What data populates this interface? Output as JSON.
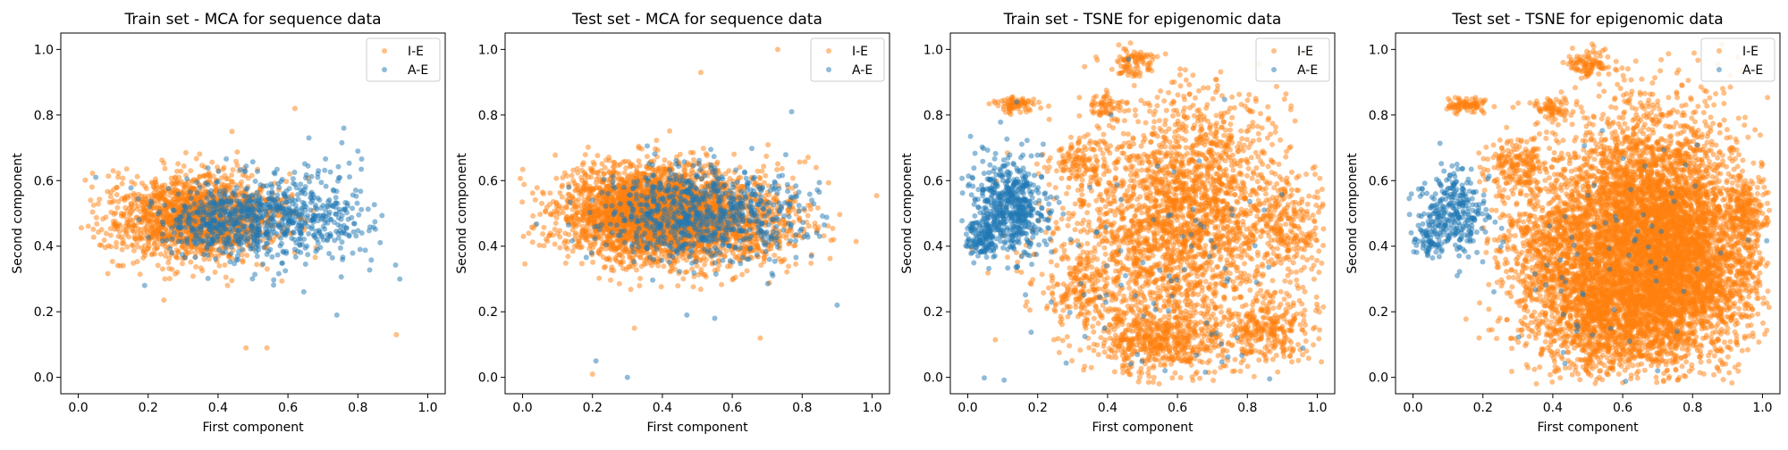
{
  "colors": {
    "I-E": "#ff7f0e",
    "A-E": "#1f77b4"
  },
  "chart_data": [
    {
      "type": "scatter",
      "title": "Train set - MCA for sequence data",
      "xlabel": "First component",
      "ylabel": "Second component",
      "xlim": [
        -0.05,
        1.05
      ],
      "ylim": [
        -0.05,
        1.05
      ],
      "xticks": [
        "0.0",
        "0.2",
        "0.4",
        "0.6",
        "0.8",
        "1.0"
      ],
      "yticks": [
        "0.0",
        "0.2",
        "0.4",
        "0.6",
        "0.8",
        "1.0"
      ],
      "grid": false,
      "legend_position": "top-right",
      "series": [
        {
          "name": "I-E",
          "color": "#ff7f0e",
          "alpha": 0.5,
          "clusters": [
            {
              "cx": 0.36,
              "cy": 0.49,
              "sx": 0.11,
              "sy": 0.065,
              "n": 1400
            },
            {
              "cx": 0.2,
              "cy": 0.48,
              "sx": 0.08,
              "sy": 0.07,
              "n": 250
            }
          ],
          "outliers": [
            [
              0.62,
              0.82
            ],
            [
              0.91,
              0.13
            ],
            [
              0.48,
              0.09
            ],
            [
              0.54,
              0.09
            ],
            [
              0.44,
              0.75
            ],
            [
              0.1,
              0.63
            ],
            [
              0.12,
              0.34
            ]
          ]
        },
        {
          "name": "A-E",
          "color": "#1f77b4",
          "alpha": 0.5,
          "clusters": [
            {
              "cx": 0.48,
              "cy": 0.48,
              "sx": 0.12,
              "sy": 0.06,
              "n": 700
            },
            {
              "cx": 0.72,
              "cy": 0.5,
              "sx": 0.07,
              "sy": 0.07,
              "n": 150
            }
          ],
          "outliers": [
            [
              0.92,
              0.3
            ],
            [
              0.74,
              0.19
            ],
            [
              0.76,
              0.76
            ],
            [
              0.8,
              0.69
            ],
            [
              0.66,
              0.73
            ],
            [
              0.19,
              0.28
            ],
            [
              0.05,
              0.61
            ]
          ]
        }
      ]
    },
    {
      "type": "scatter",
      "title": "Test set - MCA for sequence data",
      "xlabel": "First component",
      "ylabel": "Second component",
      "xlim": [
        -0.05,
        1.05
      ],
      "ylim": [
        -0.05,
        1.05
      ],
      "xticks": [
        "0.0",
        "0.2",
        "0.4",
        "0.6",
        "0.8",
        "1.0"
      ],
      "yticks": [
        "0.0",
        "0.2",
        "0.4",
        "0.6",
        "0.8",
        "1.0"
      ],
      "grid": false,
      "legend_position": "top-right",
      "series": [
        {
          "name": "I-E",
          "color": "#ff7f0e",
          "alpha": 0.5,
          "clusters": [
            {
              "cx": 0.38,
              "cy": 0.5,
              "sx": 0.13,
              "sy": 0.07,
              "n": 3200
            },
            {
              "cx": 0.65,
              "cy": 0.47,
              "sx": 0.1,
              "sy": 0.07,
              "n": 400
            }
          ],
          "outliers": [
            [
              0.73,
              1.0
            ],
            [
              0.51,
              0.93
            ],
            [
              0.2,
              0.01
            ],
            [
              0.68,
              0.12
            ],
            [
              0.32,
              0.15
            ],
            [
              0.89,
              0.42
            ],
            [
              0.06,
              0.56
            ],
            [
              0.84,
              0.64
            ]
          ]
        },
        {
          "name": "A-E",
          "color": "#1f77b4",
          "alpha": 0.5,
          "clusters": [
            {
              "cx": 0.48,
              "cy": 0.5,
              "sx": 0.12,
              "sy": 0.07,
              "n": 650
            },
            {
              "cx": 0.72,
              "cy": 0.48,
              "sx": 0.08,
              "sy": 0.07,
              "n": 120
            }
          ],
          "outliers": [
            [
              0.21,
              0.05
            ],
            [
              0.3,
              0.0
            ],
            [
              0.77,
              0.81
            ],
            [
              0.9,
              0.22
            ],
            [
              0.47,
              0.19
            ],
            [
              0.55,
              0.18
            ],
            [
              0.85,
              0.43
            ]
          ]
        }
      ]
    },
    {
      "type": "scatter",
      "title": "Train set - TSNE for epigenomic data",
      "xlabel": "First component",
      "ylabel": "Second component",
      "xlim": [
        -0.05,
        1.05
      ],
      "ylim": [
        -0.05,
        1.05
      ],
      "xticks": [
        "0.0",
        "0.2",
        "0.4",
        "0.6",
        "0.8",
        "1.0"
      ],
      "yticks": [
        "0.0",
        "0.2",
        "0.4",
        "0.6",
        "0.8",
        "1.0"
      ],
      "grid": false,
      "legend_position": "top-right",
      "series": [
        {
          "name": "I-E",
          "color": "#ff7f0e",
          "alpha": 0.5,
          "clusters": [
            {
              "cx": 0.65,
              "cy": 0.55,
              "sx": 0.13,
              "sy": 0.17,
              "n": 1600
            },
            {
              "cx": 0.5,
              "cy": 0.35,
              "sx": 0.16,
              "sy": 0.16,
              "n": 900
            },
            {
              "cx": 0.55,
              "cy": 0.12,
              "sx": 0.1,
              "sy": 0.05,
              "n": 500
            },
            {
              "cx": 0.85,
              "cy": 0.15,
              "sx": 0.07,
              "sy": 0.05,
              "n": 300
            },
            {
              "cx": 0.48,
              "cy": 0.96,
              "sx": 0.03,
              "sy": 0.02,
              "n": 80
            },
            {
              "cx": 0.14,
              "cy": 0.83,
              "sx": 0.03,
              "sy": 0.012,
              "n": 80
            },
            {
              "cx": 0.32,
              "cy": 0.66,
              "sx": 0.05,
              "sy": 0.04,
              "n": 120
            },
            {
              "cx": 0.4,
              "cy": 0.82,
              "sx": 0.03,
              "sy": 0.02,
              "n": 60
            },
            {
              "cx": 0.32,
              "cy": 0.26,
              "sx": 0.04,
              "sy": 0.04,
              "n": 100
            },
            {
              "cx": 0.92,
              "cy": 0.45,
              "sx": 0.05,
              "sy": 0.08,
              "n": 200
            }
          ],
          "outliers": []
        },
        {
          "name": "A-E",
          "color": "#1f77b4",
          "alpha": 0.5,
          "clusters": [
            {
              "cx": 0.12,
              "cy": 0.52,
              "sx": 0.05,
              "sy": 0.07,
              "n": 550
            },
            {
              "cx": 0.04,
              "cy": 0.42,
              "sx": 0.02,
              "sy": 0.03,
              "n": 120
            },
            {
              "cx": 0.55,
              "cy": 0.3,
              "sx": 0.2,
              "sy": 0.2,
              "n": 90
            }
          ],
          "outliers": [
            [
              0.14,
              0.84
            ],
            [
              0.46,
              0.97
            ],
            [
              0.41,
              0.8
            ]
          ]
        }
      ]
    },
    {
      "type": "scatter",
      "title": "Test set - TSNE for epigenomic data",
      "xlabel": "First component",
      "ylabel": "Second component",
      "xlim": [
        -0.05,
        1.05
      ],
      "ylim": [
        -0.05,
        1.05
      ],
      "xticks": [
        "0.0",
        "0.2",
        "0.4",
        "0.6",
        "0.8",
        "1.0"
      ],
      "yticks": [
        "0.0",
        "0.2",
        "0.4",
        "0.6",
        "0.8",
        "1.0"
      ],
      "grid": false,
      "legend_position": "top-right",
      "series": [
        {
          "name": "I-E",
          "color": "#ff7f0e",
          "alpha": 0.5,
          "clusters": [
            {
              "cx": 0.68,
              "cy": 0.45,
              "sx": 0.13,
              "sy": 0.18,
              "n": 4500
            },
            {
              "cx": 0.55,
              "cy": 0.2,
              "sx": 0.12,
              "sy": 0.1,
              "n": 1500
            },
            {
              "cx": 0.8,
              "cy": 0.3,
              "sx": 0.1,
              "sy": 0.12,
              "n": 1200
            },
            {
              "cx": 0.4,
              "cy": 0.42,
              "sx": 0.08,
              "sy": 0.1,
              "n": 600
            },
            {
              "cx": 0.5,
              "cy": 0.96,
              "sx": 0.03,
              "sy": 0.02,
              "n": 90
            },
            {
              "cx": 0.15,
              "cy": 0.83,
              "sx": 0.03,
              "sy": 0.01,
              "n": 80
            },
            {
              "cx": 0.3,
              "cy": 0.64,
              "sx": 0.05,
              "sy": 0.05,
              "n": 200
            },
            {
              "cx": 0.4,
              "cy": 0.82,
              "sx": 0.03,
              "sy": 0.02,
              "n": 70
            },
            {
              "cx": 0.95,
              "cy": 0.5,
              "sx": 0.03,
              "sy": 0.05,
              "n": 200
            }
          ],
          "outliers": []
        },
        {
          "name": "A-E",
          "color": "#1f77b4",
          "alpha": 0.5,
          "clusters": [
            {
              "cx": 0.12,
              "cy": 0.5,
              "sx": 0.05,
              "sy": 0.07,
              "n": 300
            },
            {
              "cx": 0.04,
              "cy": 0.42,
              "sx": 0.02,
              "sy": 0.03,
              "n": 60
            },
            {
              "cx": 0.6,
              "cy": 0.35,
              "sx": 0.18,
              "sy": 0.18,
              "n": 70
            }
          ],
          "outliers": [
            [
              0.7,
              0.02
            ]
          ]
        }
      ]
    }
  ]
}
